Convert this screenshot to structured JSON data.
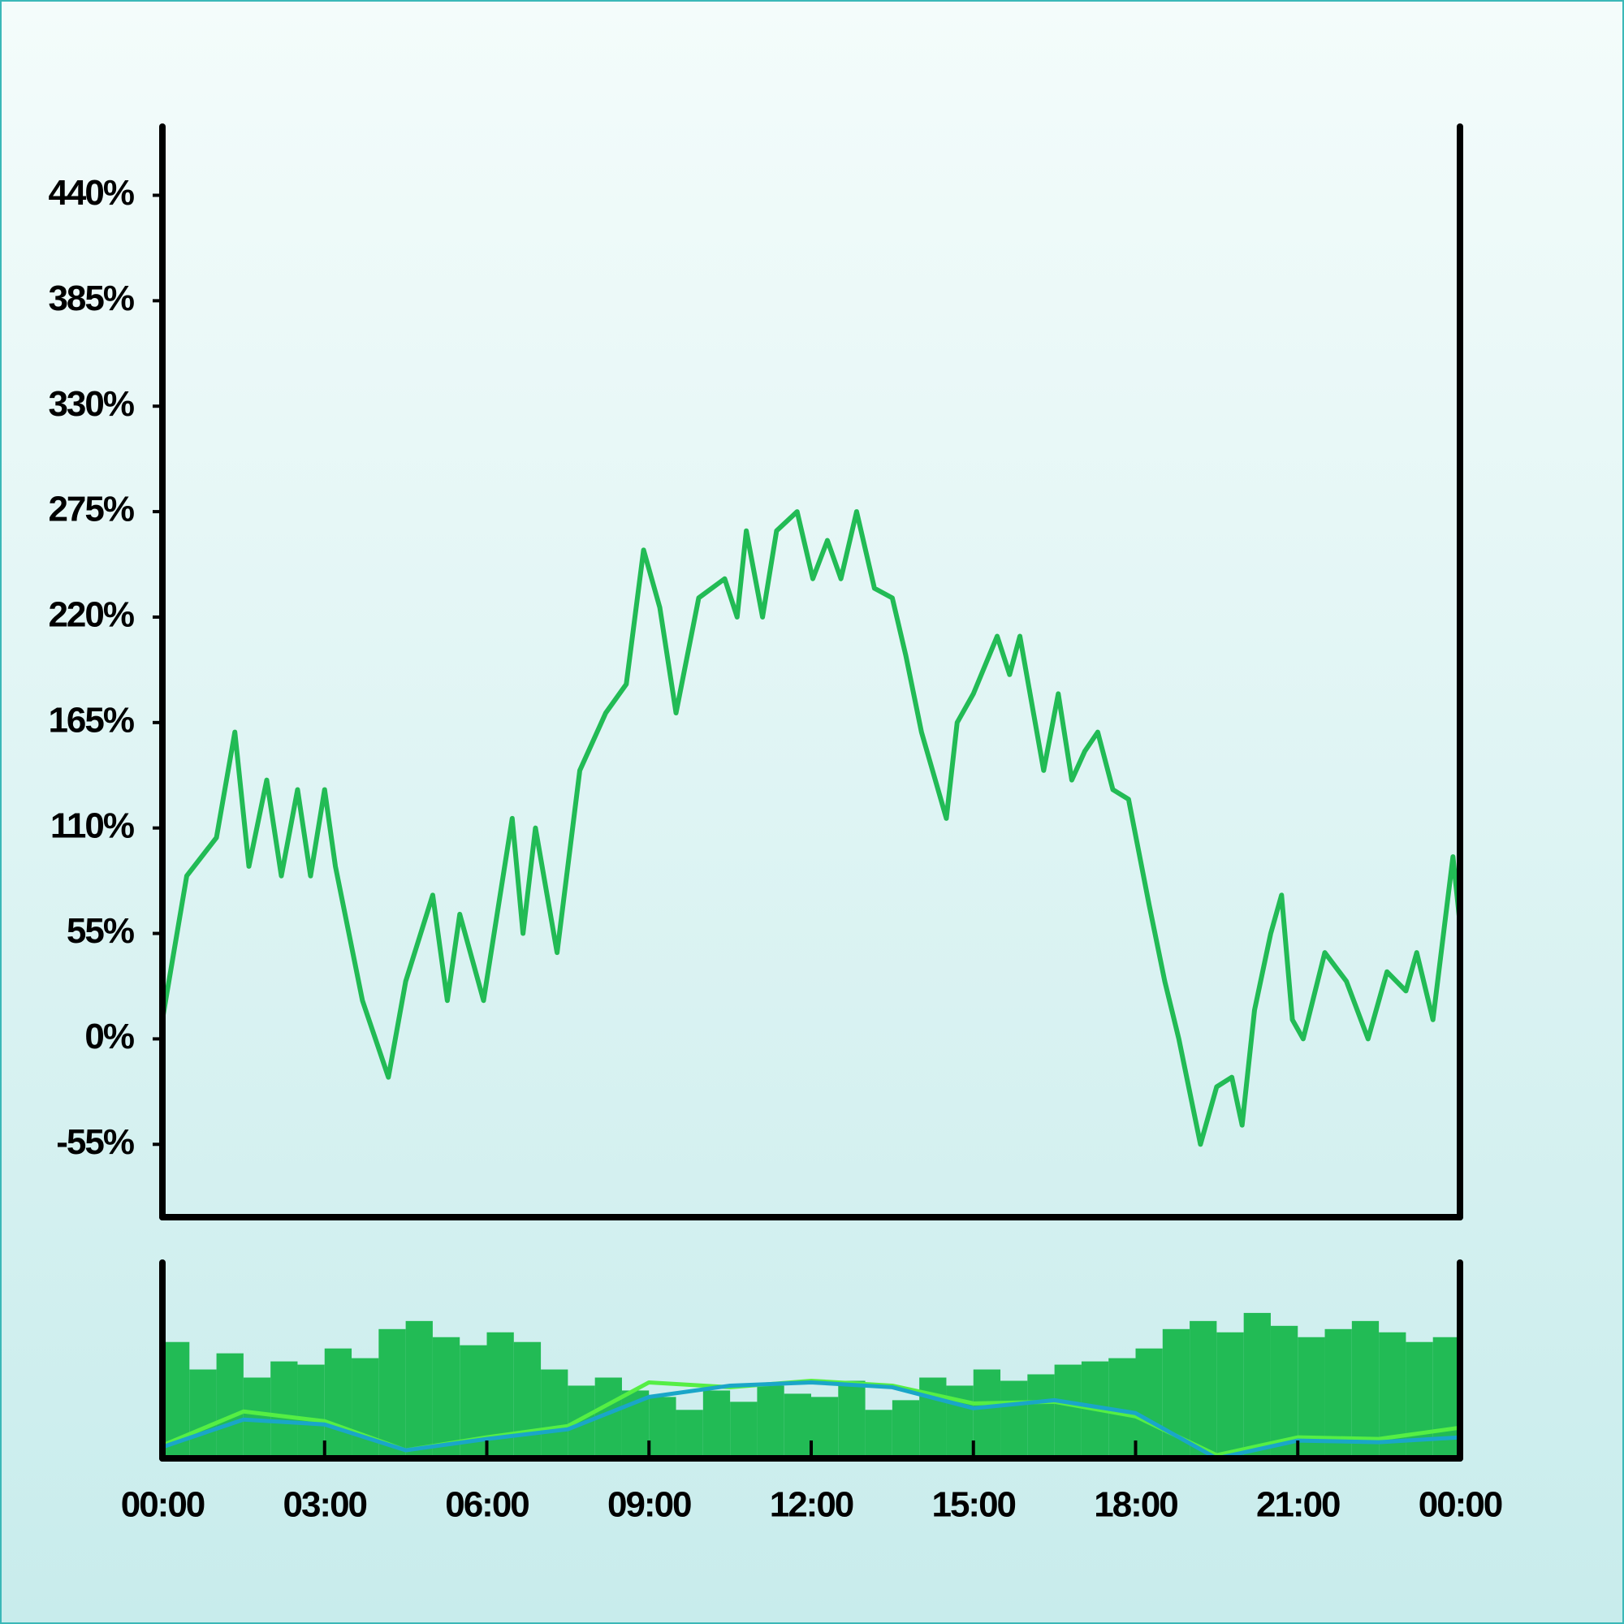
{
  "chart_data": [
    {
      "type": "line",
      "color": "#22bb55",
      "xlim": [
        0,
        24
      ],
      "ylim": [
        -93,
        458
      ],
      "yticks": [
        {
          "value": -55,
          "label": "-55%"
        },
        {
          "value": 0,
          "label": "0%"
        },
        {
          "value": 55,
          "label": "55%"
        },
        {
          "value": 110,
          "label": "110%"
        },
        {
          "value": 165,
          "label": "165%"
        },
        {
          "value": 220,
          "label": "220%"
        },
        {
          "value": 275,
          "label": "275%"
        },
        {
          "value": 330,
          "label": "330%"
        },
        {
          "value": 385,
          "label": "385%"
        },
        {
          "value": 440,
          "label": "440%"
        }
      ],
      "x": [
        0,
        0.45,
        1,
        1.34,
        1.6,
        1.93,
        2.2,
        2.5,
        2.74,
        3,
        3.2,
        3.7,
        4.18,
        4.5,
        5,
        5.27,
        5.5,
        5.94,
        6.47,
        6.67,
        6.9,
        7.3,
        7.72,
        8.2,
        8.58,
        8.9,
        9.2,
        9.5,
        9.92,
        10.4,
        10.63,
        10.8,
        11.1,
        11.36,
        11.74,
        12.03,
        12.3,
        12.55,
        12.84,
        13.17,
        13.5,
        13.75,
        14.04,
        14.5,
        14.7,
        15,
        15.44,
        15.67,
        15.86,
        16.3,
        16.57,
        16.82,
        17.06,
        17.3,
        17.58,
        17.87,
        18.25,
        18.54,
        18.8,
        19.2,
        19.5,
        19.78,
        19.97,
        20.2,
        20.5,
        20.7,
        20.9,
        21.1,
        21.5,
        21.9,
        22.3,
        22.65,
        23,
        23.2,
        23.5,
        23.87,
        24
      ],
      "values": [
        10,
        85,
        105,
        160,
        90,
        135,
        85,
        130,
        85,
        130,
        90,
        20,
        -20,
        30,
        75,
        20,
        65,
        20,
        115,
        55,
        110,
        45,
        140,
        170,
        185,
        255,
        225,
        170,
        230,
        240,
        220,
        265,
        220,
        265,
        275,
        240,
        260,
        240,
        275,
        235,
        230,
        200,
        160,
        115,
        165,
        180,
        210,
        190,
        210,
        140,
        180,
        135,
        150,
        160,
        130,
        125,
        70,
        30,
        0,
        -55,
        -25,
        -20,
        -45,
        15,
        55,
        75,
        10,
        0,
        45,
        30,
        0,
        35,
        25,
        45,
        10,
        95,
        60
      ]
    },
    {
      "type": "bar",
      "color": "#22bb55",
      "xlim": [
        0,
        24
      ],
      "ylim": [
        0,
        100
      ],
      "xticks": [
        {
          "value": 0,
          "label": "00:00"
        },
        {
          "value": 3,
          "label": "03:00"
        },
        {
          "value": 6,
          "label": "06:00"
        },
        {
          "value": 9,
          "label": "09:00"
        },
        {
          "value": 12,
          "label": "12:00"
        },
        {
          "value": 15,
          "label": "15:00"
        },
        {
          "value": 18,
          "label": "18:00"
        },
        {
          "value": 21,
          "label": "21:00"
        },
        {
          "value": 24,
          "label": "00:00"
        }
      ],
      "x": [
        0.25,
        0.75,
        1.25,
        1.75,
        2.25,
        2.75,
        3.25,
        3.75,
        4.25,
        4.75,
        5.25,
        5.75,
        6.25,
        6.75,
        7.25,
        7.75,
        8.25,
        8.75,
        9.25,
        9.75,
        10.25,
        10.75,
        11.25,
        11.75,
        12.25,
        12.75,
        13.25,
        13.75,
        14.25,
        14.75,
        15.25,
        15.75,
        16.25,
        16.75,
        17.25,
        17.75,
        18.25,
        18.75,
        19.25,
        19.75,
        20.25,
        20.75,
        21.25,
        21.75,
        22.25,
        22.75,
        23.25,
        23.75
      ],
      "values": [
        72,
        55,
        65,
        50,
        60,
        58,
        68,
        62,
        80,
        85,
        75,
        70,
        78,
        72,
        55,
        45,
        50,
        42,
        38,
        30,
        42,
        35,
        45,
        40,
        38,
        48,
        30,
        36,
        50,
        45,
        55,
        48,
        52,
        58,
        60,
        62,
        68,
        80,
        85,
        78,
        90,
        82,
        75,
        80,
        85,
        78,
        72,
        75
      ],
      "series": [
        {
          "type": "line",
          "color": "#55ee44",
          "x": [
            0,
            1.5,
            3,
            4.5,
            6,
            7.5,
            9,
            10.5,
            12,
            13.5,
            15,
            16.5,
            18,
            19.5,
            21,
            22.5,
            24
          ],
          "values": [
            8,
            29,
            23,
            5,
            13,
            20,
            47,
            44,
            48,
            45,
            34,
            35,
            26,
            2,
            13,
            12,
            19
          ]
        },
        {
          "type": "line",
          "color": "#1aa6c8",
          "x": [
            0,
            1.5,
            3,
            4.5,
            6,
            7.5,
            9,
            10.5,
            12,
            13.5,
            15,
            16.5,
            18,
            19.5,
            21,
            22.5,
            24
          ],
          "values": [
            7,
            24,
            21,
            5,
            12,
            18,
            38,
            45,
            47,
            44,
            31,
            36,
            28,
            0,
            11,
            10,
            13
          ]
        }
      ]
    }
  ]
}
